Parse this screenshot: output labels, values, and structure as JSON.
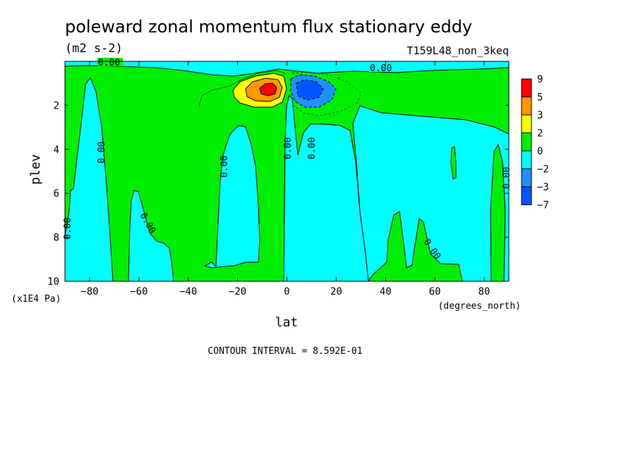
{
  "chart_data": {
    "type": "heatmap",
    "title": "poleward zonal momentum flux stationary eddy",
    "units": "(m2 s-2)",
    "run_label": "T159L48_non_3keq",
    "xlabel": "lat",
    "xunits": "(degrees_north)",
    "ylabel": "plev",
    "yunits": "(x1E4 Pa)",
    "xlim": [
      -90,
      90
    ],
    "ylim": [
      10,
      0
    ],
    "x_ticks": [
      -80,
      -60,
      -40,
      -20,
      0,
      20,
      40,
      60,
      80
    ],
    "y_ticks": [
      2,
      4,
      6,
      8,
      10
    ],
    "contour_interval_text": "CONTOUR INTERVAL = 8.592E-01",
    "contour_label": "0.00",
    "colorbar": {
      "labels": [
        "9",
        "5",
        "3",
        "2",
        "0",
        "-2",
        "-3",
        "-7"
      ],
      "colors": [
        "#ff0000",
        "#ff9900",
        "#ffff00",
        "#00ee00",
        "#00ffff",
        "#1e90ff",
        "#0055ff"
      ]
    },
    "features": [
      {
        "name": "positive-maximum",
        "lat": -8,
        "plev": 1.2,
        "value": 6.5
      },
      {
        "name": "negative-minimum",
        "lat": 8,
        "plev": 1.2,
        "value": -4.5
      }
    ]
  }
}
